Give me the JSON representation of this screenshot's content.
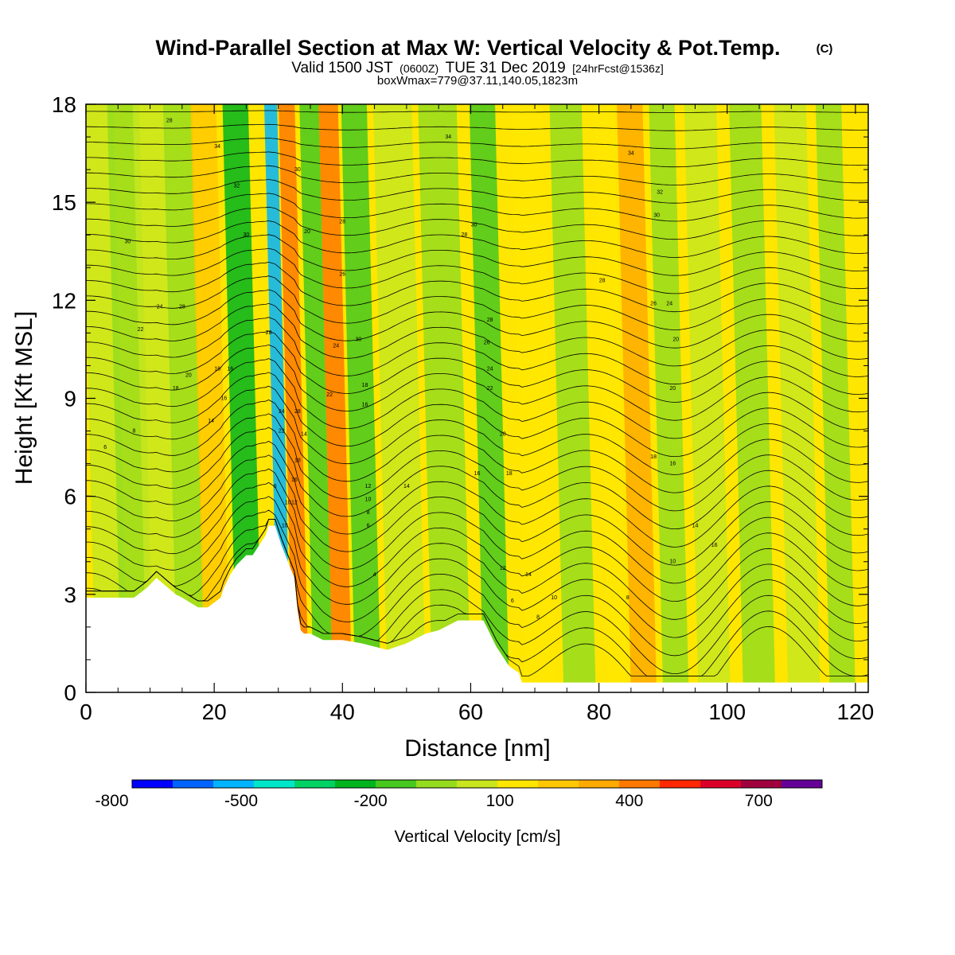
{
  "header": {
    "title_main": "Wind-Parallel Section at Max W: Vertical Velocity & Pot.Temp.",
    "copyright_mark": "(C)",
    "valid_prefix": "Valid 1500 JST",
    "valid_utc": "(0600Z)",
    "valid_date": "TUE 31 Dec 2019",
    "forecast_info": "[24hrFcst@1536z]",
    "box_info": "boxWmax=779@37.11,140.05,1823m"
  },
  "colorbar": {
    "label": "Vertical Velocity [cm/s]",
    "tick_labels": [
      "-800",
      "-500",
      "-200",
      "100",
      "400",
      "700"
    ],
    "colors": [
      "#0000ff",
      "#0064ff",
      "#00b4ff",
      "#00e6c8",
      "#00d264",
      "#00b41e",
      "#46c81e",
      "#96dc1e",
      "#c8e61e",
      "#ffe600",
      "#ffc800",
      "#ffaa00",
      "#ff7800",
      "#ff2800",
      "#dc0028",
      "#a0003c",
      "#640096"
    ]
  },
  "chart_data": {
    "type": "heatmap",
    "title": "Wind-Parallel Section at Max W: Vertical Velocity & Pot.Temp.",
    "xlabel": "Distance [nm]",
    "ylabel": "Height [Kft MSL]",
    "xlim": [
      0,
      122
    ],
    "ylim": [
      0,
      18
    ],
    "x_ticks": [
      0,
      20,
      40,
      60,
      80,
      100,
      120
    ],
    "y_ticks": [
      0,
      3,
      6,
      9,
      12,
      15,
      18
    ],
    "colorbar_range": [
      -800,
      800
    ],
    "terrain_profile": {
      "x": [
        0,
        7.5,
        9.5,
        11,
        14,
        15,
        17.5,
        19,
        21,
        21.5,
        22.5,
        23.5,
        25,
        26,
        27,
        28,
        28.5,
        29.5,
        30.5,
        31.5,
        32.5,
        33,
        33.5,
        34,
        35,
        37,
        40,
        43,
        47,
        50,
        53,
        55,
        58,
        62,
        64,
        65,
        66,
        67.5,
        68,
        70,
        122
      ],
      "y": [
        2.9,
        2.9,
        3.2,
        3.5,
        3.0,
        2.9,
        2.6,
        2.6,
        2.9,
        3.2,
        3.6,
        3.9,
        4.2,
        4.2,
        4.5,
        4.8,
        5.1,
        5.1,
        4.5,
        4.0,
        3.5,
        2.5,
        1.9,
        1.8,
        1.8,
        1.6,
        1.6,
        1.5,
        1.3,
        1.5,
        1.8,
        1.9,
        2.2,
        2.2,
        1.4,
        1.1,
        0.8,
        0.6,
        0.3,
        0.3,
        0.3
      ]
    },
    "vertical_velocity_bands": [
      {
        "x": 4,
        "w": 5,
        "value": 40
      },
      {
        "x": 8,
        "w": 5,
        "value": -80
      },
      {
        "x": 12,
        "w": 5,
        "value": 40
      },
      {
        "x": 16.5,
        "w": 4.5,
        "value": -60
      },
      {
        "x": 20.5,
        "w": 4,
        "value": 220
      },
      {
        "x": 25.5,
        "w": 4,
        "value": -260
      },
      {
        "x": 31,
        "w": 2,
        "value": -520
      },
      {
        "x": 33.5,
        "w": 2.5,
        "value": 420
      },
      {
        "x": 37,
        "w": 3,
        "value": -230
      },
      {
        "x": 40,
        "w": 3,
        "value": 330
      },
      {
        "x": 44,
        "w": 4,
        "value": -160
      },
      {
        "x": 50,
        "w": 6,
        "value": 40
      },
      {
        "x": 57,
        "w": 6,
        "value": -120
      },
      {
        "x": 64,
        "w": 4,
        "value": -230
      },
      {
        "x": 71,
        "w": 5,
        "value": 60
      },
      {
        "x": 77,
        "w": 5,
        "value": -60
      },
      {
        "x": 83,
        "w": 3,
        "value": 130
      },
      {
        "x": 87,
        "w": 4,
        "value": 240
      },
      {
        "x": 92,
        "w": 4,
        "value": -80
      },
      {
        "x": 98,
        "w": 5,
        "value": 30
      },
      {
        "x": 105,
        "w": 5,
        "value": -60
      },
      {
        "x": 112,
        "w": 5,
        "value": 40
      },
      {
        "x": 118,
        "w": 4,
        "value": -50
      }
    ],
    "contour_labels": [
      {
        "x": 13,
        "y": 17.5,
        "text": "28"
      },
      {
        "x": 20.5,
        "y": 16.7,
        "text": "34"
      },
      {
        "x": 23.5,
        "y": 15.5,
        "text": "32"
      },
      {
        "x": 6.5,
        "y": 13.8,
        "text": "30"
      },
      {
        "x": 25,
        "y": 14.0,
        "text": "30"
      },
      {
        "x": 11.5,
        "y": 11.8,
        "text": "24"
      },
      {
        "x": 15,
        "y": 11.8,
        "text": "28"
      },
      {
        "x": 8.5,
        "y": 11.1,
        "text": "22"
      },
      {
        "x": 28.5,
        "y": 11.0,
        "text": "28"
      },
      {
        "x": 16,
        "y": 9.7,
        "text": "20"
      },
      {
        "x": 20.5,
        "y": 9.9,
        "text": "18"
      },
      {
        "x": 22.5,
        "y": 9.9,
        "text": "16"
      },
      {
        "x": 14,
        "y": 9.3,
        "text": "18"
      },
      {
        "x": 21.5,
        "y": 9.0,
        "text": "16"
      },
      {
        "x": 19.5,
        "y": 8.3,
        "text": "14"
      },
      {
        "x": 7.5,
        "y": 8.0,
        "text": "8"
      },
      {
        "x": 3,
        "y": 7.5,
        "text": "6"
      },
      {
        "x": 30.5,
        "y": 8.6,
        "text": "24"
      },
      {
        "x": 33,
        "y": 8.6,
        "text": "28"
      },
      {
        "x": 30.5,
        "y": 8.0,
        "text": "22"
      },
      {
        "x": 34,
        "y": 7.9,
        "text": "14"
      },
      {
        "x": 33,
        "y": 7.1,
        "text": "18"
      },
      {
        "x": 29.5,
        "y": 6.3,
        "text": "6"
      },
      {
        "x": 32.5,
        "y": 6.5,
        "text": "16"
      },
      {
        "x": 31.5,
        "y": 5.8,
        "text": "10"
      },
      {
        "x": 32.5,
        "y": 5.8,
        "text": "12"
      },
      {
        "x": 31,
        "y": 5.1,
        "text": "10"
      },
      {
        "x": 33,
        "y": 16.0,
        "text": "30"
      },
      {
        "x": 34.5,
        "y": 14.1,
        "text": "20"
      },
      {
        "x": 40,
        "y": 14.4,
        "text": "28"
      },
      {
        "x": 40,
        "y": 12.8,
        "text": "26"
      },
      {
        "x": 42.5,
        "y": 10.8,
        "text": "30"
      },
      {
        "x": 39,
        "y": 10.6,
        "text": "24"
      },
      {
        "x": 43.5,
        "y": 9.4,
        "text": "18"
      },
      {
        "x": 38,
        "y": 9.1,
        "text": "22"
      },
      {
        "x": 43.5,
        "y": 8.8,
        "text": "16"
      },
      {
        "x": 44,
        "y": 6.3,
        "text": "12"
      },
      {
        "x": 44,
        "y": 5.9,
        "text": "10"
      },
      {
        "x": 44,
        "y": 5.5,
        "text": "8"
      },
      {
        "x": 44,
        "y": 5.1,
        "text": "6"
      },
      {
        "x": 50,
        "y": 6.3,
        "text": "14"
      },
      {
        "x": 45,
        "y": 3.6,
        "text": "4"
      },
      {
        "x": 56.5,
        "y": 17.0,
        "text": "34"
      },
      {
        "x": 85,
        "y": 16.5,
        "text": "34"
      },
      {
        "x": 89.5,
        "y": 15.3,
        "text": "32"
      },
      {
        "x": 89,
        "y": 14.6,
        "text": "30"
      },
      {
        "x": 60.5,
        "y": 14.3,
        "text": "30"
      },
      {
        "x": 59,
        "y": 14.0,
        "text": "28"
      },
      {
        "x": 80.5,
        "y": 12.6,
        "text": "28"
      },
      {
        "x": 88.5,
        "y": 11.9,
        "text": "26"
      },
      {
        "x": 91,
        "y": 11.9,
        "text": "24"
      },
      {
        "x": 63,
        "y": 11.4,
        "text": "28"
      },
      {
        "x": 62.5,
        "y": 10.7,
        "text": "26"
      },
      {
        "x": 92,
        "y": 10.8,
        "text": "20"
      },
      {
        "x": 63,
        "y": 9.9,
        "text": "24"
      },
      {
        "x": 63,
        "y": 9.3,
        "text": "22"
      },
      {
        "x": 91.5,
        "y": 9.3,
        "text": "20"
      },
      {
        "x": 65,
        "y": 7.9,
        "text": "20"
      },
      {
        "x": 66,
        "y": 6.7,
        "text": "18"
      },
      {
        "x": 61,
        "y": 6.7,
        "text": "16"
      },
      {
        "x": 88.5,
        "y": 7.2,
        "text": "18"
      },
      {
        "x": 91.5,
        "y": 7.0,
        "text": "16"
      },
      {
        "x": 95,
        "y": 5.1,
        "text": "14"
      },
      {
        "x": 98,
        "y": 4.5,
        "text": "16"
      },
      {
        "x": 91.5,
        "y": 4.0,
        "text": "10"
      },
      {
        "x": 65,
        "y": 3.8,
        "text": "12"
      },
      {
        "x": 69,
        "y": 3.6,
        "text": "14"
      },
      {
        "x": 73,
        "y": 2.9,
        "text": "10"
      },
      {
        "x": 66.5,
        "y": 2.8,
        "text": "6"
      },
      {
        "x": 70.5,
        "y": 2.3,
        "text": "8"
      },
      {
        "x": 84.5,
        "y": 2.9,
        "text": "8"
      }
    ]
  }
}
